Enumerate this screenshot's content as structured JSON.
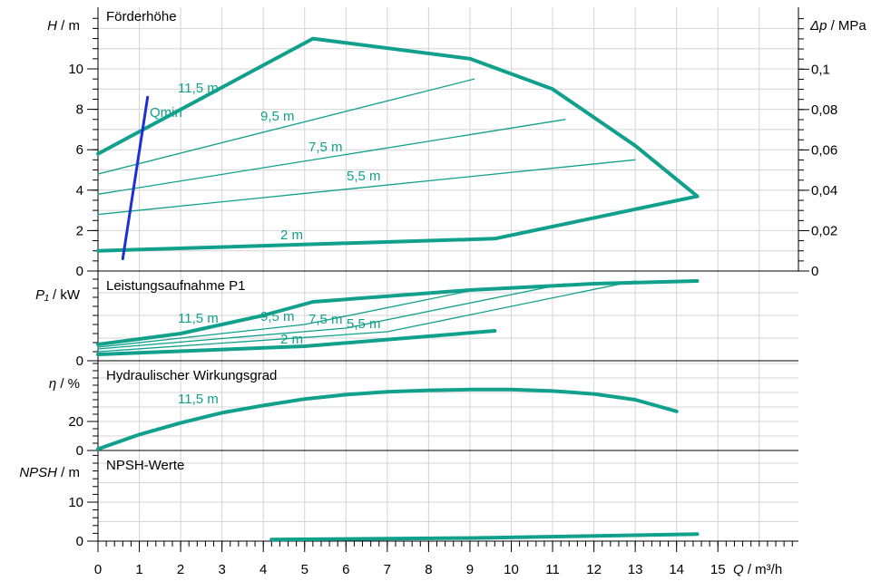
{
  "colors": {
    "curve": "#11a08c",
    "qmin": "#1f2fd6",
    "grid": "#d4d4d4",
    "axis": "#000000"
  },
  "chart_data": [
    {
      "type": "line",
      "panel": "head",
      "title": "Förderhöhe",
      "ylabel_sym": "H",
      "ylabel_unit": " / m",
      "y2label_sym": "Δp",
      "y2label_unit": " / MPa",
      "ylim": [
        0,
        12
      ],
      "yticks": [
        "0",
        "2",
        "4",
        "6",
        "8",
        "10"
      ],
      "y2ticks": [
        "0",
        "0,02",
        "0,04",
        "0,06",
        "0,08",
        "0,1"
      ],
      "grid": true,
      "series": [
        {
          "name": "11,5 m",
          "label": "11,5 m",
          "bold": true,
          "x": [
            0,
            5.2,
            9,
            11,
            13,
            14.5
          ],
          "y": [
            5.8,
            11.5,
            10.5,
            9.0,
            6.2,
            3.7
          ]
        },
        {
          "name": "9,5 m",
          "label": "9,5 m",
          "bold": false,
          "x": [
            0,
            9.1
          ],
          "y": [
            4.8,
            9.5
          ]
        },
        {
          "name": "7,5 m",
          "label": "7,5 m",
          "bold": false,
          "x": [
            0,
            11.3
          ],
          "y": [
            3.8,
            7.5
          ]
        },
        {
          "name": "5,5 m",
          "label": "5,5 m",
          "bold": false,
          "x": [
            0,
            13
          ],
          "y": [
            2.8,
            5.5
          ]
        },
        {
          "name": "2 m",
          "label": "2 m",
          "bold": true,
          "x": [
            0,
            9.6,
            14.5
          ],
          "y": [
            1.0,
            1.6,
            3.7
          ]
        },
        {
          "name": "Qmin",
          "label": "Qmin",
          "color": "qmin",
          "x": [
            0.6,
            1.2
          ],
          "y": [
            0.6,
            8.6
          ]
        }
      ]
    },
    {
      "type": "line",
      "panel": "power",
      "title": "Leistungsaufnahme P1",
      "ylabel_sym": "P₁",
      "ylabel_unit": " / kW",
      "yticks": [
        "0"
      ],
      "grid": true,
      "series": [
        {
          "name": "11,5 m",
          "label": "11,5 m",
          "bold": true,
          "x": [
            0,
            2,
            4,
            5.2,
            9,
            12,
            14.5
          ],
          "y": [
            0.18,
            0.3,
            0.5,
            0.65,
            0.78,
            0.85,
            0.88
          ]
        },
        {
          "name": "9,5 m",
          "label": "9,5 m",
          "bold": false,
          "x": [
            0,
            5,
            9.1
          ],
          "y": [
            0.15,
            0.4,
            0.78
          ]
        },
        {
          "name": "7,5 m",
          "label": "7,5 m",
          "bold": false,
          "x": [
            0,
            6,
            11.3
          ],
          "y": [
            0.13,
            0.36,
            0.85
          ]
        },
        {
          "name": "5,5 m",
          "label": "5,5 m",
          "bold": false,
          "x": [
            0,
            7,
            13
          ],
          "y": [
            0.1,
            0.32,
            0.88
          ]
        },
        {
          "name": "2 m",
          "label": "2 m",
          "bold": true,
          "x": [
            0,
            5,
            9.6
          ],
          "y": [
            0.07,
            0.16,
            0.33
          ]
        }
      ]
    },
    {
      "type": "line",
      "panel": "efficiency",
      "title": "Hydraulischer Wirkungsgrad",
      "ylabel_sym": "η",
      "ylabel_unit": " / %",
      "yticks": [
        "0",
        "20"
      ],
      "grid": true,
      "series": [
        {
          "name": "11,5 m",
          "label": "11,5 m",
          "bold": true,
          "x": [
            0,
            1,
            2,
            3,
            4,
            5,
            6,
            7,
            8,
            9,
            10,
            11,
            12,
            13,
            14
          ],
          "y": [
            1,
            11,
            19,
            26,
            31,
            35.5,
            38.5,
            40.5,
            41.5,
            42,
            42,
            41,
            39,
            35,
            27
          ]
        }
      ]
    },
    {
      "type": "line",
      "panel": "npsh",
      "title": "NPSH-Werte",
      "ylabel_sym": "NPSH",
      "ylabel_unit": " / m",
      "yticks": [
        "0",
        "10"
      ],
      "xlabel_sym": "Q",
      "xlabel_unit": " / m³/h",
      "xticks": [
        "0",
        "1",
        "2",
        "3",
        "4",
        "5",
        "6",
        "7",
        "8",
        "9",
        "10",
        "11",
        "12",
        "13",
        "14",
        "15"
      ],
      "grid": true,
      "series": [
        {
          "name": "NPSH",
          "bold": true,
          "x": [
            4.2,
            9,
            14.5
          ],
          "y": [
            0.4,
            0.8,
            1.8
          ]
        }
      ]
    }
  ]
}
